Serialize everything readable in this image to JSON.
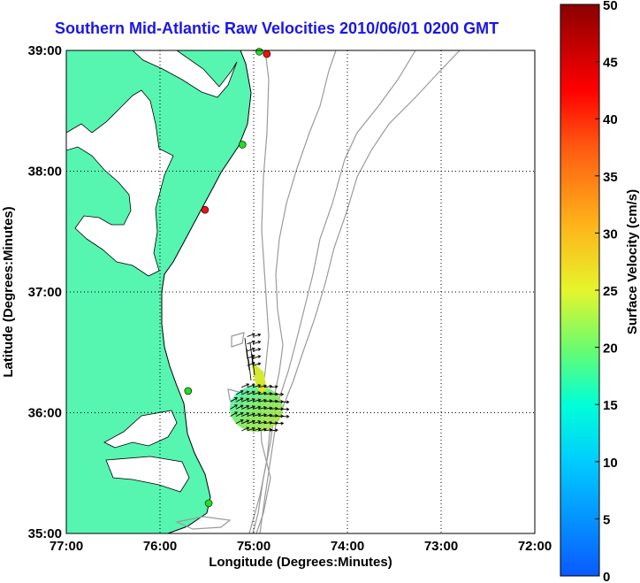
{
  "title": "Southern Mid-Atlantic Raw Velocities 2010/06/01 0200 GMT",
  "map": {
    "xlabel": "Longitude (Degrees:Minutes)",
    "ylabel": "Latitude (Degrees:Minutes)",
    "x_ticks": [
      "77:00",
      "76:00",
      "75:00",
      "74:00",
      "73:00",
      "72:00"
    ],
    "y_ticks": [
      "39:00",
      "38:00",
      "37:00",
      "36:00",
      "35:00"
    ],
    "grid": true,
    "land_color": "#56f5b0",
    "contour_color": "#9a9a9a",
    "station_colors": {
      "active": "#22dd22",
      "inactive": "#ee1111"
    }
  },
  "colorbar": {
    "label": "Surface Velocity (cm/s)",
    "ticks": [
      "50",
      "45",
      "40",
      "35",
      "30",
      "25",
      "20",
      "15",
      "10",
      "5",
      "0"
    ],
    "range": [
      0,
      50
    ]
  },
  "chart_data": {
    "type": "scatter",
    "x_range_deg_east": [
      -77.0,
      -72.0
    ],
    "y_range_deg_north": [
      35.0,
      39.0
    ],
    "stations": [
      {
        "lon": -74.86,
        "lat": 38.97,
        "status": "inactive"
      },
      {
        "lon": -74.94,
        "lat": 38.99,
        "status": "active"
      },
      {
        "lon": -75.12,
        "lat": 38.22,
        "status": "active"
      },
      {
        "lon": -75.52,
        "lat": 37.68,
        "status": "inactive"
      },
      {
        "lon": -75.7,
        "lat": 36.18,
        "status": "active"
      },
      {
        "lon": -75.48,
        "lat": 35.25,
        "status": "active"
      }
    ],
    "vector_field_region": {
      "lon_range": [
        -75.25,
        -74.65
      ],
      "lat_range": [
        35.85,
        36.65
      ]
    }
  }
}
